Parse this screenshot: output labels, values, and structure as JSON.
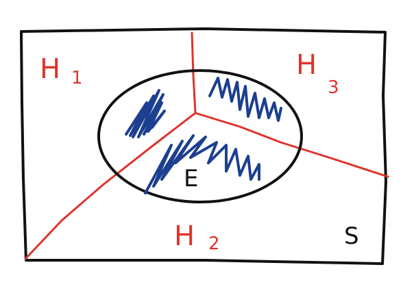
{
  "diagram": {
    "partitions": [
      {
        "base": "H",
        "sub": "1"
      },
      {
        "base": "H",
        "sub": "2"
      },
      {
        "base": "H",
        "sub": "3"
      }
    ],
    "event_label": "E",
    "sample_space_label": "S",
    "colors": {
      "outline": "#111111",
      "partition_lines": "#e0332b",
      "shading": "#1c3f8f",
      "background": "#ffffff"
    }
  }
}
